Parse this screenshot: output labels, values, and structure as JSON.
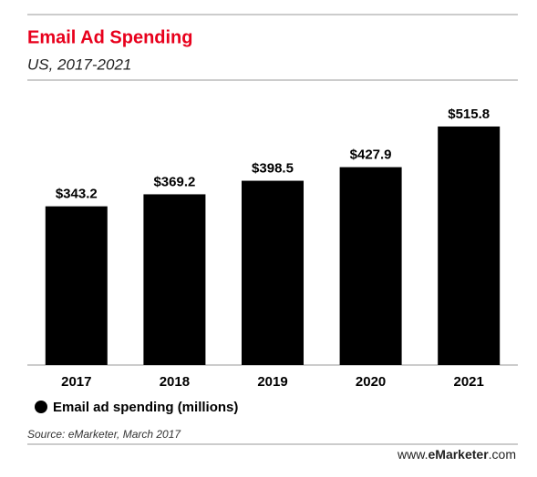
{
  "chart_data": {
    "type": "bar",
    "title": "Email Ad Spending",
    "subtitle": "US, 2017-2021",
    "categories": [
      "2017",
      "2018",
      "2019",
      "2020",
      "2021"
    ],
    "series": [
      {
        "name": "Email ad spending (millions)",
        "color": "#000000",
        "values": [
          343.2,
          369.2,
          398.5,
          427.9,
          515.8
        ],
        "value_labels": [
          "$343.2",
          "$369.2",
          "$398.5",
          "$427.9",
          "$515.8"
        ]
      }
    ],
    "source": "Source: eMarketer, March 2017",
    "footer": {
      "prefix": "www.",
      "brand": "eMarketer",
      "suffix": ".com"
    }
  }
}
